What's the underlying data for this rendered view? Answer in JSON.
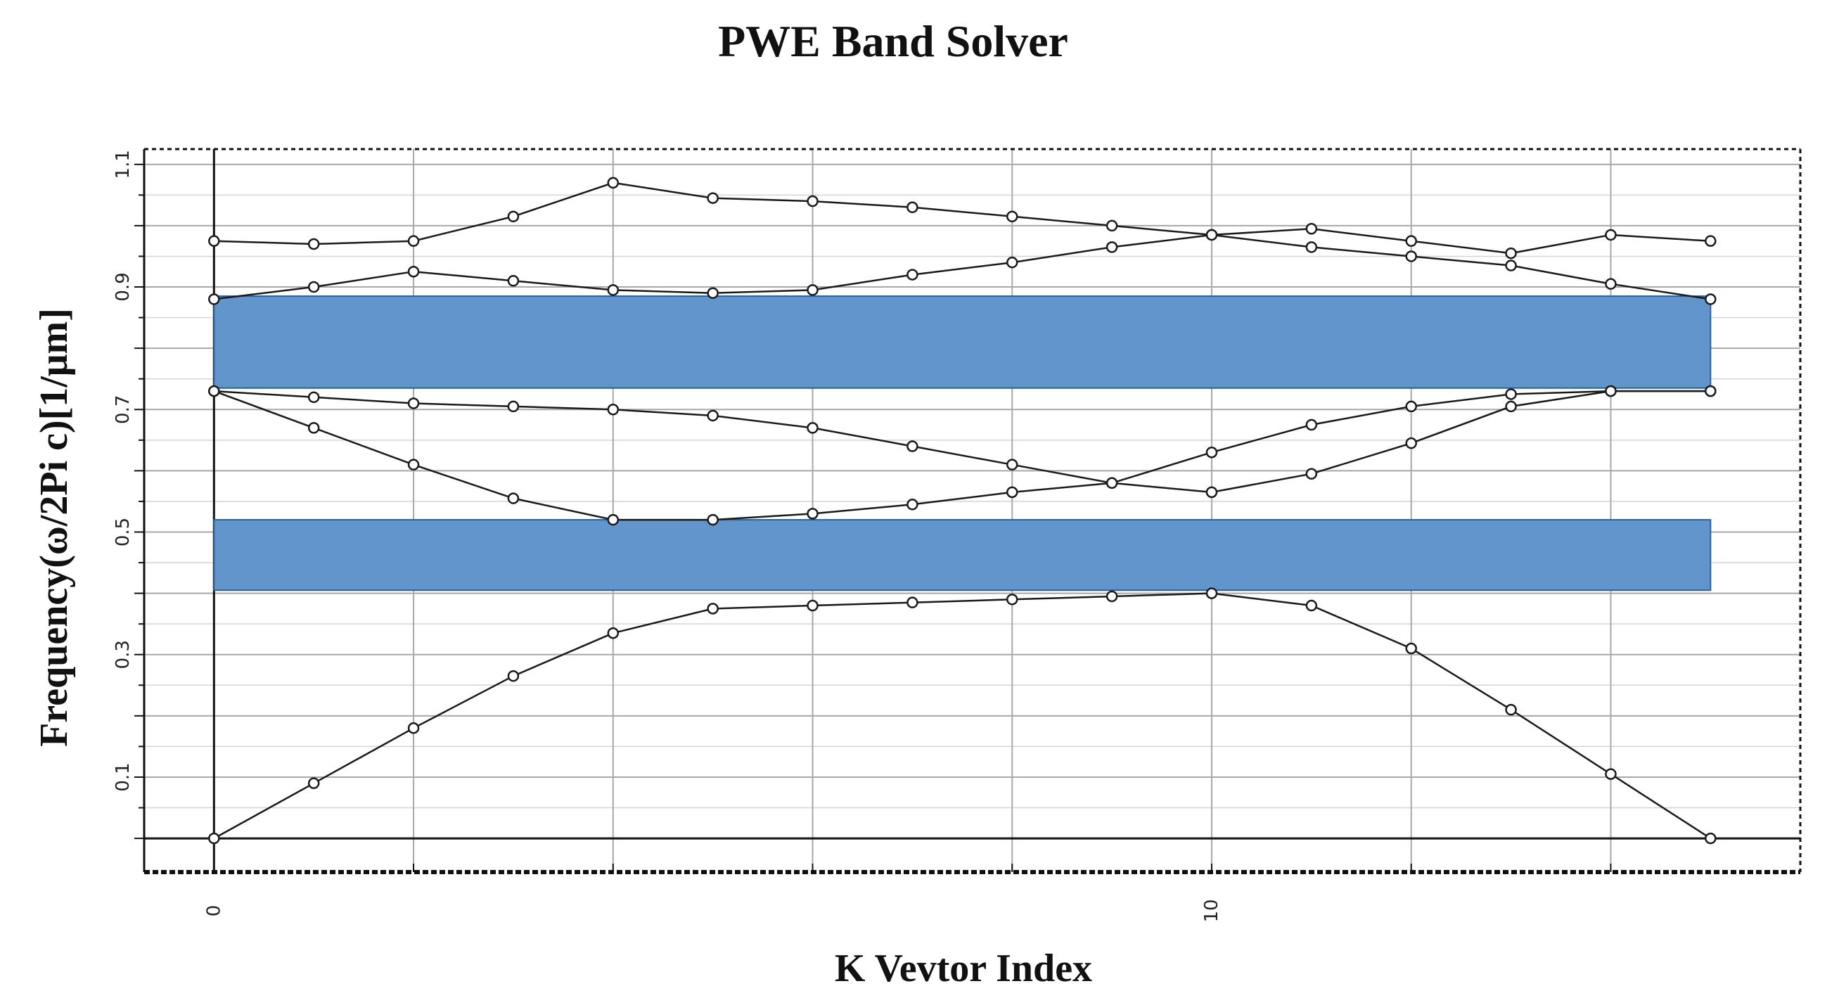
{
  "chart_data": {
    "type": "line",
    "title": "PWE Band Solver",
    "xlabel": "K Vevtor Index",
    "ylabel": "Frequency(ω/2Pi c)[1/μm]",
    "xlim": [
      -0.7,
      15.9
    ],
    "ylim": [
      -0.055,
      1.125
    ],
    "x_ticks": [
      0,
      10
    ],
    "y_ticks": [
      0.1,
      0.3,
      0.5,
      0.7,
      0.9,
      1.1
    ],
    "grid": true,
    "x": [
      0,
      1,
      2,
      3,
      4,
      5,
      6,
      7,
      8,
      9,
      10,
      11,
      12,
      13,
      14,
      15
    ],
    "series": [
      {
        "values": [
          0.0,
          0.09,
          0.18,
          0.265,
          0.335,
          0.375,
          0.38,
          0.385,
          0.39,
          0.395,
          0.4,
          0.38,
          0.31,
          0.21,
          0.105,
          0.0
        ]
      },
      {
        "values": [
          0.73,
          0.67,
          0.61,
          0.555,
          0.52,
          0.52,
          0.53,
          0.545,
          0.565,
          0.58,
          0.63,
          0.675,
          0.705,
          0.725,
          0.73,
          0.73
        ]
      },
      {
        "values": [
          0.73,
          0.72,
          0.71,
          0.705,
          0.7,
          0.69,
          0.67,
          0.64,
          0.61,
          0.58,
          0.565,
          0.595,
          0.645,
          0.705,
          0.73,
          0.73
        ]
      },
      {
        "values": [
          0.88,
          0.9,
          0.925,
          0.91,
          0.895,
          0.89,
          0.895,
          0.92,
          0.94,
          0.965,
          0.985,
          0.965,
          0.95,
          0.935,
          0.905,
          0.88
        ]
      },
      {
        "values": [
          0.975,
          0.97,
          0.975,
          1.015,
          1.07,
          1.045,
          1.04,
          1.03,
          1.015,
          1.0,
          0.985,
          0.995,
          0.975,
          0.955,
          0.985,
          0.975
        ]
      }
    ],
    "band_gaps": [
      {
        "from": 0.405,
        "to": 0.52
      },
      {
        "from": 0.735,
        "to": 0.885
      }
    ],
    "colors": {
      "band_gap_fill": "#6295cc",
      "band_gap_edge": "#2f5f95",
      "band_line": "#1a1a1a",
      "grid_major": "#a8a8a8",
      "grid_minor": "#d4d4d4"
    }
  }
}
